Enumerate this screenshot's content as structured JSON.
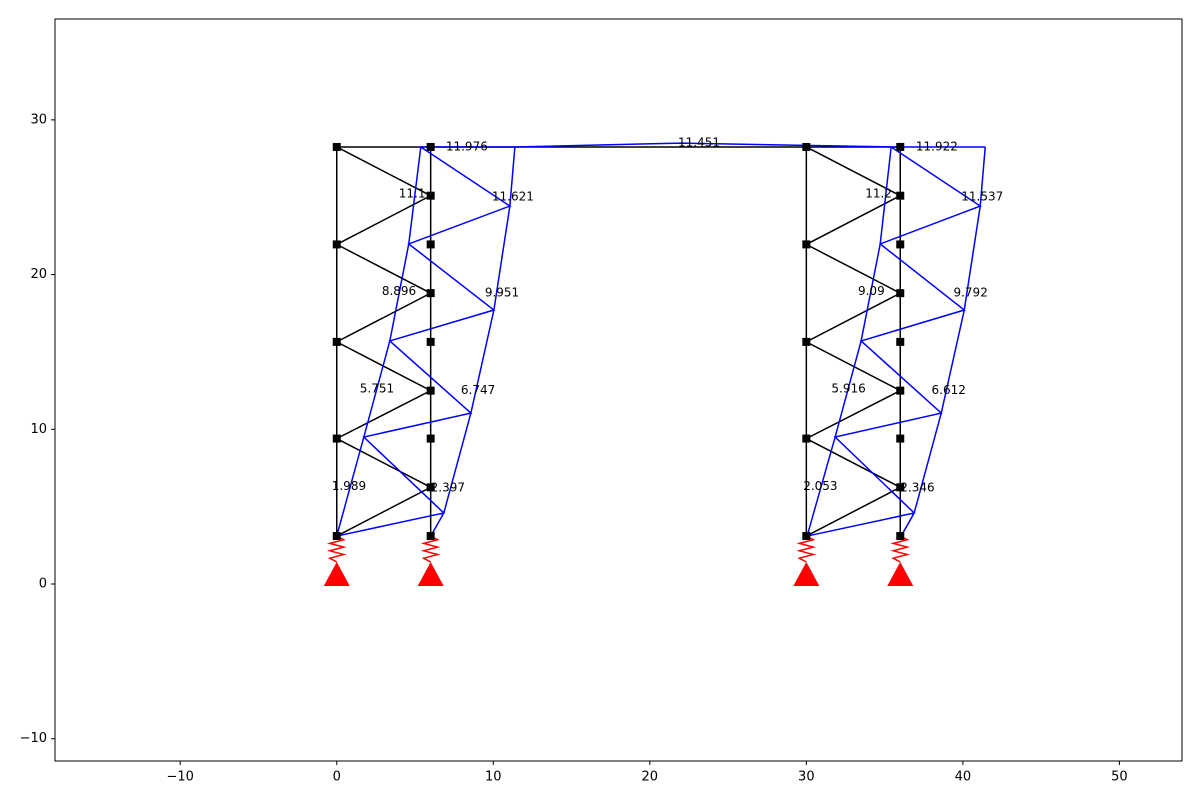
{
  "chart_data": {
    "type": "line",
    "xlim": [
      -18,
      54
    ],
    "ylim": [
      -11.44,
      36.52
    ],
    "xticks": [
      {
        "value": -10,
        "label": "−10"
      },
      0,
      10,
      20,
      30,
      40,
      50
    ],
    "yticks": [
      {
        "value": -10,
        "label": "−10"
      },
      0,
      10,
      20,
      30
    ],
    "series": [
      {
        "color": "#000000",
        "x": [
          0,
          0,
          null,
          6,
          6,
          null,
          0,
          6,
          0,
          6,
          0,
          6,
          0,
          6,
          0,
          null,
          0,
          36,
          null,
          30,
          30,
          null,
          36,
          36,
          null,
          30,
          36,
          30,
          36,
          30,
          36,
          30,
          36,
          30
        ],
        "y": [
          3.1,
          28.25,
          null,
          3.1,
          28.25,
          null,
          3.1,
          6.25,
          9.4,
          12.5,
          15.65,
          18.8,
          21.95,
          25.1,
          28.25,
          null,
          28.25,
          28.25,
          null,
          3.1,
          28.25,
          null,
          3.1,
          28.25,
          null,
          3.1,
          6.25,
          9.4,
          12.5,
          15.65,
          18.8,
          21.95,
          25.1,
          28.25
        ]
      },
      {
        "color": "#0000ff",
        "x": [
          0,
          1.73,
          3.39,
          4.6,
          5.37,
          null,
          6.01,
          6.84,
          8.57,
          10.04,
          11.06,
          11.38,
          null,
          0,
          6.84,
          1.73,
          8.57,
          3.39,
          10.04,
          4.6,
          11.06,
          5.37,
          null,
          5.37,
          11.38,
          22,
          35.42,
          41.43,
          null,
          30.05,
          31.84,
          33.5,
          34.72,
          35.42,
          null,
          36.06,
          36.89,
          38.62,
          40.09,
          41.11,
          41.43,
          null,
          30.05,
          36.89,
          31.84,
          38.62,
          33.5,
          40.09,
          34.72,
          41.11,
          35.42
        ],
        "y": [
          3.1,
          9.5,
          15.71,
          21.98,
          28.25,
          null,
          3.1,
          4.59,
          11.05,
          17.71,
          24.43,
          28.25,
          null,
          3.1,
          4.59,
          9.5,
          11.05,
          15.71,
          17.71,
          21.98,
          24.43,
          28.25,
          null,
          28.25,
          28.25,
          28.5,
          28.25,
          28.25,
          null,
          3.1,
          9.5,
          15.71,
          21.98,
          28.25,
          null,
          3.1,
          4.59,
          11.05,
          17.71,
          24.43,
          28.25,
          null,
          3.1,
          4.59,
          9.5,
          11.05,
          15.71,
          17.71,
          21.98,
          24.43,
          28.25
        ]
      }
    ],
    "nodes": {
      "color": "#000000",
      "x": [
        0,
        0,
        0,
        0,
        0,
        6,
        6,
        6,
        6,
        6,
        6,
        6,
        6,
        6,
        30,
        30,
        30,
        30,
        30,
        36,
        36,
        36,
        36,
        36,
        36,
        36,
        36,
        36
      ],
      "y": [
        3.1,
        9.4,
        15.65,
        21.95,
        28.25,
        3.1,
        6.25,
        9.4,
        12.5,
        15.65,
        18.8,
        21.95,
        25.1,
        28.25,
        3.1,
        9.4,
        15.65,
        21.95,
        28.25,
        3.1,
        6.25,
        9.4,
        12.5,
        15.65,
        18.8,
        21.95,
        25.1,
        28.25
      ]
    },
    "supports": {
      "color": "#ff0000",
      "x": [
        0,
        6,
        30,
        36
      ],
      "y": [
        0,
        0,
        0,
        0
      ]
    },
    "annotations": [
      {
        "x": 6.97,
        "y": 28.25,
        "text": "11.976"
      },
      {
        "x": 21.8,
        "y": 28.5,
        "text": "11.451"
      },
      {
        "x": 37.0,
        "y": 28.25,
        "text": "11.922"
      },
      {
        "x": 3.96,
        "y": 25.2,
        "text": "11.1"
      },
      {
        "x": 33.76,
        "y": 25.2,
        "text": "11.2"
      },
      {
        "x": 9.91,
        "y": 25.0,
        "text": "11.621"
      },
      {
        "x": 39.9,
        "y": 25.0,
        "text": "11.537"
      },
      {
        "x": 2.88,
        "y": 18.9,
        "text": "8.896"
      },
      {
        "x": 33.3,
        "y": 18.9,
        "text": "9.09"
      },
      {
        "x": 9.46,
        "y": 18.8,
        "text": "9.951"
      },
      {
        "x": 39.4,
        "y": 18.8,
        "text": "9.792"
      },
      {
        "x": 1.47,
        "y": 12.6,
        "text": "5.751"
      },
      {
        "x": 31.6,
        "y": 12.6,
        "text": "5.916"
      },
      {
        "x": 7.93,
        "y": 12.5,
        "text": "6.747"
      },
      {
        "x": 38.0,
        "y": 12.5,
        "text": "6.612"
      },
      {
        "x": -0.32,
        "y": 6.3,
        "text": "1.989"
      },
      {
        "x": 29.8,
        "y": 6.3,
        "text": "2.053"
      },
      {
        "x": 6.0,
        "y": 6.2,
        "text": "2.397"
      },
      {
        "x": 36.0,
        "y": 6.2,
        "text": "2.346"
      }
    ]
  }
}
